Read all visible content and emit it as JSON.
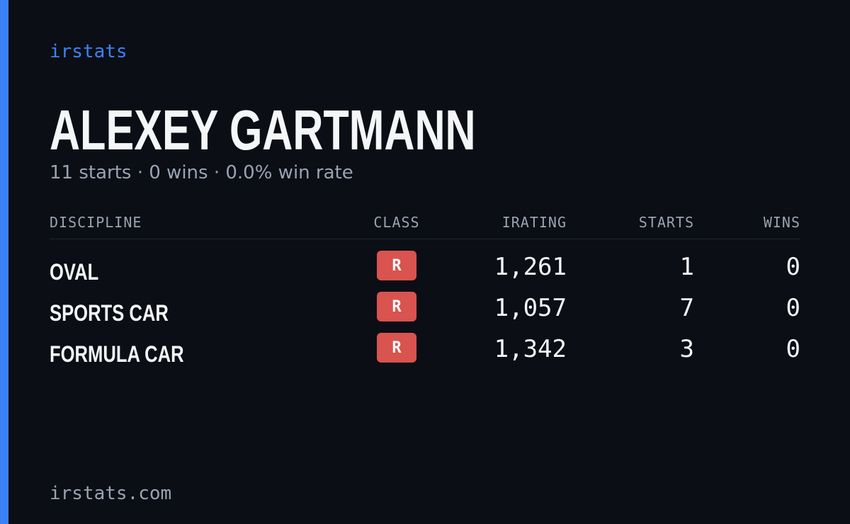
{
  "brand": "irstats",
  "driver": {
    "name": "ALEXEY GARTMANN",
    "summary": "11 starts · 0 wins · 0.0% win rate"
  },
  "table": {
    "headers": [
      "DISCIPLINE",
      "CLASS",
      "IRATING",
      "STARTS",
      "WINS"
    ],
    "rows": [
      [
        "OVAL",
        "R",
        "1,261",
        "1",
        "0"
      ],
      [
        "SPORTS CAR",
        "R",
        "1,057",
        "7",
        "0"
      ],
      [
        "FORMULA CAR",
        "R",
        "1,342",
        "3",
        "0"
      ]
    ]
  },
  "footer": "irstats.com"
}
